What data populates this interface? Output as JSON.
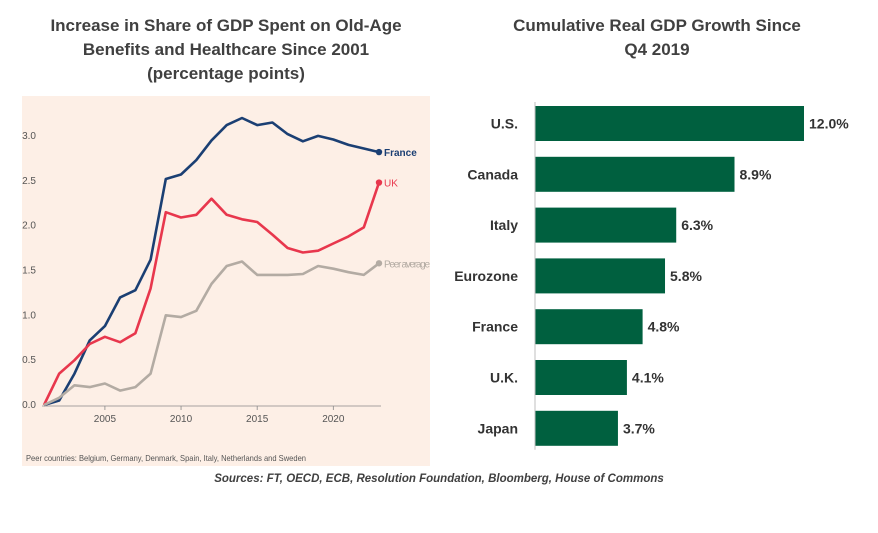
{
  "left_title": [
    "Increase in Share of GDP Spent on Old-Age",
    "Benefits and Healthcare Since 2001",
    "(percentage points)"
  ],
  "right_title": [
    "Cumulative Real GDP Growth Since",
    "Q4 2019"
  ],
  "sources": "Sources: FT, OECD, ECB, Resolution Foundation, Bloomberg, House of Commons",
  "colors": {
    "france": "#1b3f73",
    "uk": "#e8374d",
    "peer": "#b3aba3",
    "bar": "#00603f",
    "panel_bg": "#fdefe6"
  },
  "chart_data": [
    {
      "type": "line",
      "title": "Increase in Share of GDP Spent on Old-Age Benefits and Healthcare Since 2001 (percentage points)",
      "xlim": [
        2001,
        2023
      ],
      "ylim": [
        0,
        3.3
      ],
      "x_ticks": [
        2005,
        2010,
        2015,
        2020
      ],
      "y_ticks": [
        "0.0",
        "0.5",
        "1.0",
        "1.5",
        "2.0",
        "2.5",
        "3.0"
      ],
      "grid": false,
      "footnote": "Peer countries: Belgium, Germany, Denmark, Spain, Italy, Netherlands and Sweden",
      "x": [
        2001,
        2002,
        2003,
        2004,
        2005,
        2006,
        2007,
        2008,
        2009,
        2010,
        2011,
        2012,
        2013,
        2014,
        2015,
        2016,
        2017,
        2018,
        2019,
        2020,
        2021,
        2022,
        2023
      ],
      "series": [
        {
          "name": "France",
          "color": "#1b3f73",
          "values": [
            0.0,
            0.05,
            0.35,
            0.72,
            0.88,
            1.2,
            1.28,
            1.62,
            2.52,
            2.57,
            2.73,
            2.95,
            3.12,
            3.2,
            3.12,
            3.15,
            3.02,
            2.94,
            3.0,
            2.96,
            2.9,
            2.86,
            2.82
          ]
        },
        {
          "name": "UK",
          "color": "#e8374d",
          "values": [
            0.0,
            0.35,
            0.5,
            0.68,
            0.76,
            0.7,
            0.8,
            1.3,
            2.15,
            2.09,
            2.12,
            2.3,
            2.12,
            2.07,
            2.04,
            1.9,
            1.75,
            1.7,
            1.72,
            1.8,
            1.88,
            1.98,
            2.48
          ]
        },
        {
          "name": "Peer average",
          "color": "#b3aba3",
          "values": [
            0.0,
            0.08,
            0.22,
            0.2,
            0.24,
            0.16,
            0.2,
            0.35,
            1.0,
            0.98,
            1.05,
            1.35,
            1.55,
            1.6,
            1.45,
            1.45,
            1.45,
            1.46,
            1.55,
            1.52,
            1.48,
            1.45,
            1.58
          ]
        }
      ]
    },
    {
      "type": "bar",
      "orientation": "horizontal",
      "title": "Cumulative Real GDP Growth Since Q4 2019",
      "categories": [
        "U.S.",
        "Canada",
        "Italy",
        "Eurozone",
        "France",
        "U.K.",
        "Japan"
      ],
      "values": [
        12.0,
        8.9,
        6.3,
        5.8,
        4.8,
        4.1,
        3.7
      ],
      "value_labels": [
        "12.0%",
        "8.9%",
        "6.3%",
        "5.8%",
        "4.8%",
        "4.1%",
        "3.7%"
      ],
      "xlim": [
        0,
        12
      ],
      "color": "#00603f"
    }
  ]
}
